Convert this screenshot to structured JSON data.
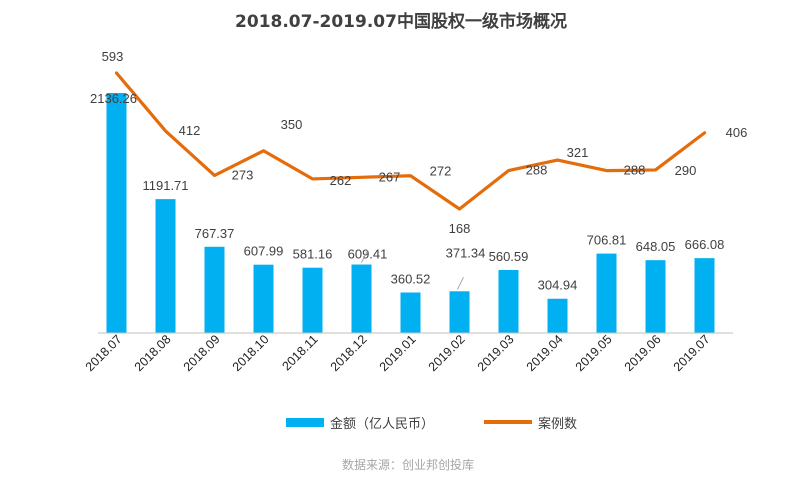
{
  "colors": {
    "bar": "#00b0f0",
    "line": "#e46c0a",
    "axis": "#bfbfbf"
  },
  "chart_data": {
    "type": "bar",
    "title": "2018.07-2019.07中国股权一级市场概况",
    "categories": [
      "2018.07",
      "2018.08",
      "2018.09",
      "2018.10",
      "2018.11",
      "2018.12",
      "2019.01",
      "2019.02",
      "2019.03",
      "2019.04",
      "2019.05",
      "2019.06",
      "2019.07"
    ],
    "series": [
      {
        "name": "金额（亿人民币）",
        "type": "bar",
        "values": [
          2136.26,
          1191.71,
          767.37,
          607.99,
          581.16,
          609.41,
          360.52,
          371.34,
          560.59,
          304.94,
          706.81,
          648.05,
          666.08
        ],
        "labels": [
          "2136.26",
          "1191.71",
          "767.37",
          "607.99",
          "581.16",
          "609.41",
          "360.52",
          "371.34",
          "560.59",
          "304.94",
          "706.81",
          "648.05",
          "666.08"
        ]
      },
      {
        "name": "案例数",
        "type": "line",
        "values": [
          593,
          412,
          273,
          350,
          262,
          267,
          272,
          168,
          288,
          321,
          288,
          290,
          406
        ],
        "labels": [
          "593",
          "412",
          "273",
          "350",
          "262",
          "267",
          "272",
          "168",
          "288",
          "321",
          "288",
          "290",
          "406"
        ]
      }
    ],
    "grid": false,
    "legend_position": "bottom"
  },
  "source_note": "数据来源：创业邦创投库"
}
